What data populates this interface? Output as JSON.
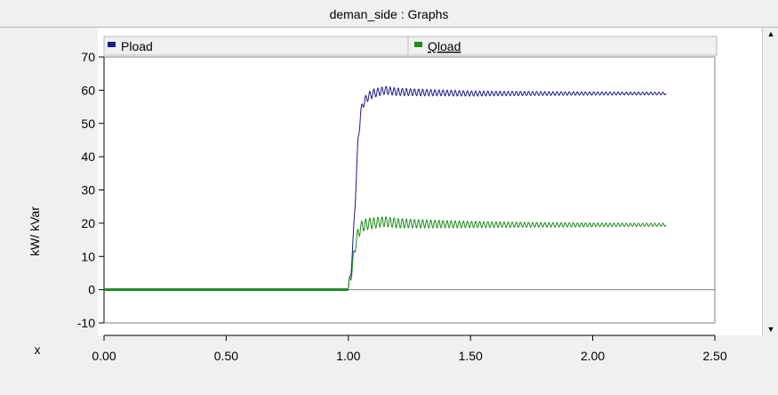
{
  "window": {
    "title": "deman_side : Graphs"
  },
  "colors": {
    "pload": "#1a1a8c",
    "qload": "#1a8c1a",
    "zero_line": "#808080"
  },
  "chart_data": {
    "type": "line",
    "ylabel": "kW/ kVar",
    "xlabel": "x",
    "xlim": [
      0,
      2.5
    ],
    "ylim": [
      -10,
      70
    ],
    "xticks": [
      "0.00",
      "0.50",
      "1.00",
      "1.50",
      "2.00",
      "2.50"
    ],
    "yticks": [
      "70",
      "60",
      "50",
      "40",
      "30",
      "20",
      "10",
      "0",
      "-10"
    ],
    "grid": false,
    "legend_position": "top",
    "series": [
      {
        "name": "Pload",
        "color": "#1a1a8c",
        "x": [
          0,
          1.0,
          1.01,
          1.02,
          1.03,
          1.04,
          1.05,
          1.06,
          1.08,
          1.1,
          1.15,
          1.2,
          1.3,
          1.5,
          1.8,
          2.3
        ],
        "values": [
          0,
          0,
          5,
          15,
          30,
          45,
          53,
          56,
          58,
          59,
          60,
          59.5,
          59.3,
          59,
          59,
          59
        ]
      },
      {
        "name": "Qload",
        "color": "#1a8c1a",
        "x": [
          0,
          1.0,
          1.01,
          1.02,
          1.03,
          1.04,
          1.05,
          1.06,
          1.08,
          1.1,
          1.15,
          1.2,
          1.3,
          1.5,
          1.8,
          2.3
        ],
        "values": [
          0,
          0,
          4,
          9,
          14,
          17,
          18.5,
          19.3,
          19.8,
          20,
          20.5,
          20,
          19.8,
          19.6,
          19.5,
          19.5
        ]
      }
    ]
  }
}
